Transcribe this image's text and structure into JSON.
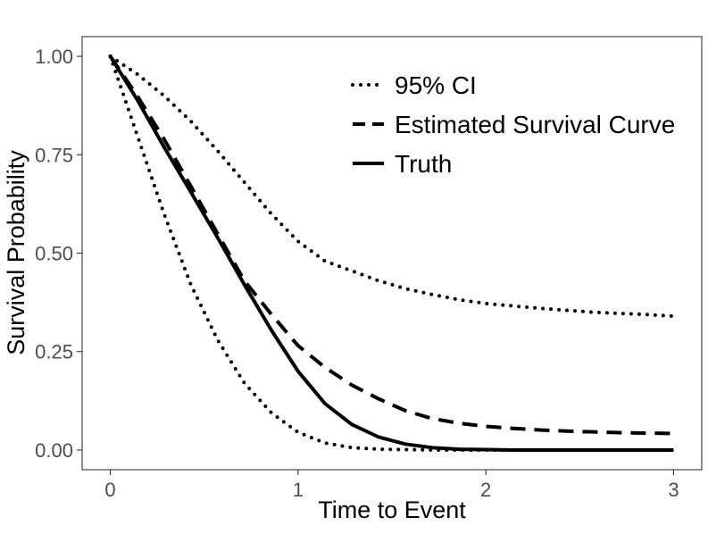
{
  "chart_data": {
    "type": "line",
    "xlabel": "Time to Event",
    "ylabel": "Survival Probability",
    "xlim": [
      -0.15,
      3.15
    ],
    "ylim": [
      -0.05,
      1.05
    ],
    "x_ticks": [
      0,
      1,
      2,
      3
    ],
    "x_tick_labels": [
      "0",
      "1",
      "2",
      "3"
    ],
    "y_ticks": [
      0,
      0.25,
      0.5,
      0.75,
      1
    ],
    "y_tick_labels": [
      "0.00",
      "0.25",
      "0.50",
      "0.75",
      "1.00"
    ],
    "grid": false,
    "legend_position": "top-right",
    "series": [
      {
        "name": "95% CI",
        "style": "dotted",
        "segments": [
          {
            "x": [
              0,
              0.143,
              0.286,
              0.429,
              0.571,
              0.714,
              0.857,
              1.0,
              1.143,
              1.286,
              1.429,
              1.571,
              1.714,
              1.857,
              2.0,
              2.143,
              2.286,
              2.429,
              2.571,
              2.714,
              2.857,
              3.0
            ],
            "y": [
              1.0,
              0.955,
              0.9,
              0.835,
              0.76,
              0.68,
              0.6,
              0.53,
              0.48,
              0.455,
              0.43,
              0.41,
              0.395,
              0.382,
              0.372,
              0.366,
              0.36,
              0.355,
              0.35,
              0.347,
              0.344,
              0.34
            ]
          },
          {
            "x": [
              0,
              0.143,
              0.286,
              0.429,
              0.571,
              0.714,
              0.857,
              1.0,
              1.143,
              1.286,
              1.429,
              1.571,
              1.714,
              1.857,
              2.0,
              2.143,
              2.286,
              2.429,
              2.571,
              2.714,
              2.857,
              3.0
            ],
            "y": [
              1.0,
              0.8,
              0.6,
              0.42,
              0.28,
              0.17,
              0.095,
              0.045,
              0.018,
              0.006,
              0.002,
              0.001,
              0.0,
              0.0,
              0.0,
              0.0,
              0.0,
              0.0,
              0.0,
              0.0,
              0.0,
              0.0
            ]
          }
        ]
      },
      {
        "name": "Estimated Survival Curve",
        "style": "dashed",
        "segments": [
          {
            "x": [
              0,
              0.143,
              0.286,
              0.429,
              0.571,
              0.714,
              0.857,
              1.0,
              1.143,
              1.286,
              1.429,
              1.571,
              1.714,
              1.857,
              2.0,
              2.143,
              2.286,
              2.429,
              2.571,
              2.714,
              2.857,
              3.0
            ],
            "y": [
              1.0,
              0.9,
              0.79,
              0.67,
              0.55,
              0.43,
              0.345,
              0.265,
              0.21,
              0.165,
              0.13,
              0.1,
              0.08,
              0.068,
              0.06,
              0.055,
              0.051,
              0.048,
              0.046,
              0.044,
              0.043,
              0.042
            ]
          }
        ]
      },
      {
        "name": "Truth",
        "style": "solid",
        "segments": [
          {
            "x": [
              0,
              0.143,
              0.286,
              0.429,
              0.571,
              0.714,
              0.857,
              1.0,
              1.143,
              1.286,
              1.429,
              1.571,
              1.714,
              1.857,
              2.0,
              2.143,
              2.286,
              2.429,
              2.571,
              2.714,
              2.857,
              3.0
            ],
            "y": [
              1.0,
              0.89,
              0.77,
              0.655,
              0.54,
              0.42,
              0.305,
              0.2,
              0.118,
              0.065,
              0.033,
              0.015,
              0.006,
              0.002,
              0.001,
              0.0,
              0.0,
              0.0,
              0.0,
              0.0,
              0.0,
              0.0
            ]
          }
        ]
      }
    ]
  }
}
